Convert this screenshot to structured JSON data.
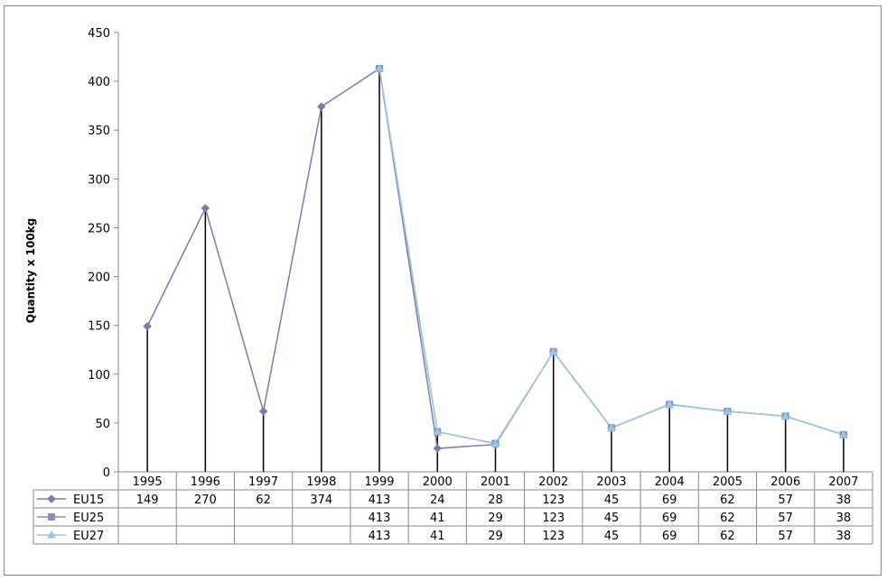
{
  "chart_data": {
    "type": "line",
    "title": "",
    "xlabel": "",
    "ylabel": "Quantity x 100kg",
    "ylim": [
      0,
      450
    ],
    "y_ticks": [
      0,
      50,
      100,
      150,
      200,
      250,
      300,
      350,
      400,
      450
    ],
    "categories": [
      "1995",
      "1996",
      "1997",
      "1998",
      "1999",
      "2000",
      "2001",
      "2002",
      "2003",
      "2004",
      "2005",
      "2006",
      "2007"
    ],
    "drop_lines": true,
    "data_table": true,
    "legend_placement": "data-table",
    "series": [
      {
        "name": "EU15",
        "marker": "diamond",
        "color": "#7b7ba8",
        "values": [
          149,
          270,
          62,
          374,
          413,
          24,
          28,
          123,
          45,
          69,
          62,
          57,
          38
        ]
      },
      {
        "name": "EU25",
        "marker": "square",
        "color": "#8a8fb8",
        "values": [
          null,
          null,
          null,
          null,
          413,
          41,
          29,
          123,
          45,
          69,
          62,
          57,
          38
        ]
      },
      {
        "name": "EU27",
        "marker": "triangle",
        "color": "#9ec4df",
        "values": [
          null,
          null,
          null,
          null,
          413,
          41,
          29,
          123,
          45,
          69,
          62,
          57,
          38
        ]
      }
    ]
  }
}
